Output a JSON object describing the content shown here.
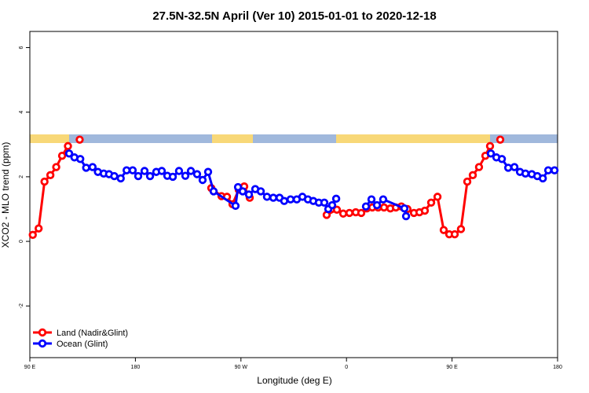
{
  "chart_data": {
    "type": "line",
    "title": "27.5N-32.5N April (Ver 10)   2015-01-01 to 2020-12-18",
    "xlabel": "Longitude (deg E)",
    "ylabel": "XCO2 - MLO trend (ppm)",
    "xlim": [
      90,
      540
    ],
    "xticks": [
      {
        "value": 90,
        "label": "90 E"
      },
      {
        "value": 180,
        "label": "180"
      },
      {
        "value": 270,
        "label": "90 W"
      },
      {
        "value": 360,
        "label": "0"
      },
      {
        "value": 450,
        "label": "90 E"
      },
      {
        "value": 540,
        "label": "180"
      }
    ],
    "ylim": [
      -3.6,
      6.5
    ],
    "yticks": [
      -2,
      0,
      2,
      4,
      6
    ],
    "legend": "bottom-left",
    "series": [
      {
        "name": "Land (Nadir&Glint)",
        "color": "#ff0000",
        "x": [
          92.5,
          97.5,
          102.5,
          107.5,
          112.5,
          117.5,
          122.5,
          127.5,
          132.5,
          240,
          244.7,
          253.4,
          258.1,
          262.8,
          268.1,
          272.8,
          277.5,
          300,
          343.1,
          351.8,
          357.2,
          362.5,
          367.9,
          372.6,
          377.3,
          382,
          387,
          392,
          397.4,
          402.1,
          406.8,
          412,
          417.5,
          422.2,
          426.8,
          432.2,
          437.6,
          442.9,
          447.6,
          452.3,
          457.6,
          463,
          467.7,
          473,
          478.4,
          482.4,
          487,
          491.1
        ],
        "values": [
          0.2,
          0.4,
          1.85,
          2.05,
          2.3,
          2.65,
          2.95,
          null,
          3.15,
          null,
          1.65,
          1.4,
          1.38,
          1.15,
          1.6,
          1.7,
          1.35,
          null,
          0.82,
          0.98,
          0.86,
          0.88,
          0.9,
          0.88,
          1.02,
          1.05,
          1.05,
          1.05,
          1.02,
          1.05,
          1.08,
          1.0,
          0.88,
          0.9,
          0.95,
          1.2,
          1.38,
          0.35,
          0.22,
          0.22,
          0.38,
          1.85,
          2.05,
          2.3,
          2.65,
          2.95,
          null,
          3.15
        ]
      },
      {
        "name": "Ocean (Glint)",
        "color": "#0000ff",
        "x": [
          123.5,
          128,
          133,
          138,
          143.5,
          148,
          153,
          157.5,
          162,
          167.5,
          172.5,
          177.7,
          182.4,
          187.8,
          192.5,
          197.8,
          202.5,
          207.2,
          211.9,
          217.2,
          222.6,
          227.3,
          232.6,
          237.3,
          242,
          246.7,
          265.4,
          267.5,
          271.5,
          276.8,
          282.2,
          286.9,
          292.2,
          297.6,
          302.9,
          306.9,
          312.3,
          317.6,
          322.4,
          327.1,
          331.7,
          336.4,
          341.1,
          344.5,
          347.8,
          351.2,
          365,
          376.6,
          381.3,
          386,
          391.3,
          409.4,
          410.8,
          450,
          483.1,
          487.8,
          492.5,
          497.9,
          503.2,
          507.9,
          512.6,
          518,
          522.7,
          527.4,
          532,
          537.4
        ],
        "values": [
          2.72,
          2.6,
          2.55,
          2.28,
          2.3,
          2.15,
          2.1,
          2.08,
          2.02,
          1.95,
          2.2,
          2.2,
          2.02,
          2.18,
          2.02,
          2.15,
          2.18,
          2.03,
          2.0,
          2.18,
          2.03,
          2.18,
          2.08,
          1.9,
          2.15,
          1.55,
          1.1,
          1.68,
          1.55,
          1.45,
          1.62,
          1.55,
          1.38,
          1.35,
          1.35,
          1.25,
          1.3,
          1.3,
          1.38,
          1.3,
          1.25,
          1.2,
          1.2,
          1.0,
          1.12,
          1.32,
          null,
          1.08,
          1.3,
          1.12,
          1.3,
          1.02,
          0.78,
          null,
          2.72,
          2.6,
          2.55,
          2.28,
          2.3,
          2.15,
          2.1,
          2.08,
          2.02,
          1.95,
          2.2,
          2.2
        ]
      }
    ]
  }
}
